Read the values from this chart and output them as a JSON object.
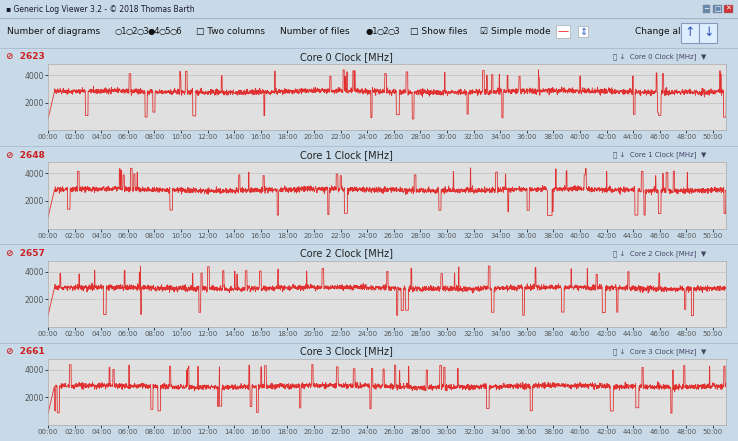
{
  "title_bar": "Generic Log Viewer 3.2 - © 2018 Thomas Barth",
  "controls_text_left": "Number of diagrams",
  "controls_text_right": "Number of files",
  "cores": [
    {
      "label": "Core 0 Clock [MHz]",
      "avg": "2623",
      "side_label": "Core 0 Clock [MHz]"
    },
    {
      "label": "Core 1 Clock [MHz]",
      "avg": "2648",
      "side_label": "Core 1 Clock [MHz]"
    },
    {
      "label": "Core 2 Clock [MHz]",
      "avg": "2657",
      "side_label": "Core 2 Clock [MHz]"
    },
    {
      "label": "Core 3 Clock [MHz]",
      "avg": "2661",
      "side_label": "Core 3 Clock [MHz]"
    }
  ],
  "line_color": "#e03030",
  "plot_bg": "#e0e0e0",
  "panel_header_bg": "#dde8f0",
  "window_bg": "#c8dae8",
  "titlebar_bg": "#a8c0d0",
  "controls_bg": "#dde8f5",
  "border_color": "#aabbcc",
  "grid_color": "#c0c0c0",
  "tick_color": "#555555",
  "label_color": "#cc2020",
  "title_color": "#222222",
  "ylim": [
    0,
    4800
  ],
  "yticks": [
    2000,
    4000
  ],
  "duration_seconds": 3060,
  "xlabel_interval_s": 120,
  "base_freq": 2800,
  "noise_std": 100,
  "n_up_spikes": 30,
  "n_down_dips": 15,
  "linewidth": 0.6
}
